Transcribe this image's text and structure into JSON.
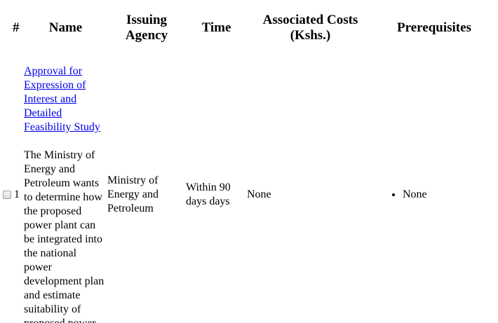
{
  "table": {
    "headers": {
      "num": "#",
      "name": "Name",
      "agency": "Issuing Agency",
      "time": "Time",
      "costs": "Associated Costs (Kshs.)",
      "prerequisites": "Prerequisites"
    },
    "rows": [
      {
        "number": "1",
        "name_link": "Approval for Expression of Interest and Detailed Feasibility Study",
        "name_description": "The Ministry of Energy and Petroleum wants to determine how the proposed power plant can be integrated into the national power development plan and estimate suitability of proposed power",
        "agency": "Ministry of Energy and Petroleum",
        "time": "Within 90 days days",
        "costs": "None",
        "prerequisites": [
          "None"
        ]
      }
    ]
  }
}
